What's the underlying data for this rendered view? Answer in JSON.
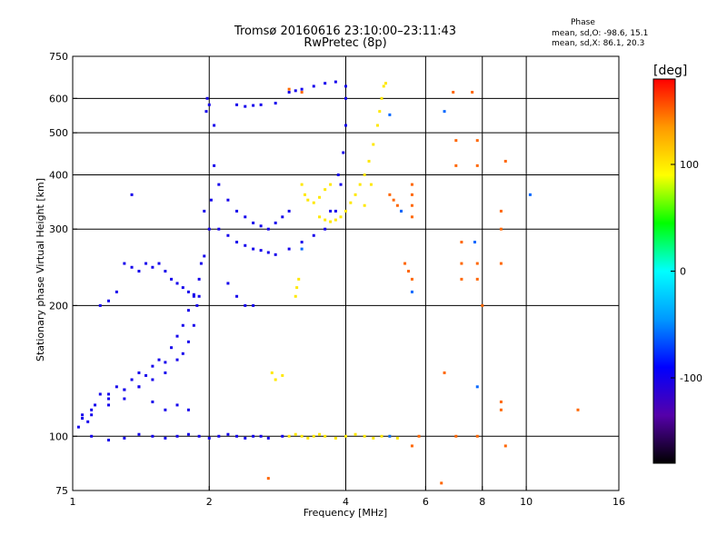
{
  "title_line1": "Tromsø 20160616 23:10:00–23:11:43",
  "title_line2": "RwPretec (8p)",
  "phase_box": {
    "title": "Phase",
    "mean_o": "mean, sd,O: -98.6, 15.1",
    "mean_x": "mean, sd,X: 86.1, 20.3"
  },
  "colorbar": {
    "unit_label": "[deg]",
    "ticks": [
      {
        "value": 100,
        "label": "100"
      },
      {
        "value": 0,
        "label": "0"
      },
      {
        "value": -100,
        "label": "-100"
      }
    ],
    "range": [
      -180,
      180
    ],
    "colors_bottom_to_top": [
      "#000000",
      "#5500aa",
      "#0000ff",
      "#0099ff",
      "#00ffff",
      "#00ff00",
      "#ffff00",
      "#ff9900",
      "#ff0000"
    ]
  },
  "chart_data": {
    "type": "scatter",
    "title": "Tromsø 20160616 23:10:00–23:11:43",
    "subtitle": "RwPretec (8p)",
    "xlabel": "Frequency [MHz]",
    "ylabel": "Stationary phase Virtual Height [km]",
    "x_scale": "log",
    "y_scale": "log",
    "xlim": [
      1,
      16
    ],
    "ylim": [
      75,
      750
    ],
    "x_ticks": [
      {
        "value": 1,
        "label": "1"
      },
      {
        "value": 2,
        "label": "2"
      },
      {
        "value": 4,
        "label": "4"
      },
      {
        "value": 6,
        "label": "6"
      },
      {
        "value": 8,
        "label": "8"
      },
      {
        "value": 10,
        "label": "10"
      },
      {
        "value": 16,
        "label": "16"
      }
    ],
    "x_gridlines": [
      2,
      4,
      6,
      8,
      10
    ],
    "y_ticks": [
      {
        "value": 75,
        "label": "75"
      },
      {
        "value": 100,
        "label": "100"
      },
      {
        "value": 200,
        "label": "200"
      },
      {
        "value": 300,
        "label": "300"
      },
      {
        "value": 400,
        "label": "400"
      },
      {
        "value": 500,
        "label": "500"
      },
      {
        "value": 600,
        "label": "600"
      },
      {
        "value": 750,
        "label": "750"
      }
    ],
    "y_gridlines": [
      100,
      200,
      300,
      400,
      500,
      600
    ],
    "grid": true,
    "color_encoding": "phase [deg]",
    "series": [
      {
        "color_phase": -100,
        "points": [
          [
            1.03,
            105
          ],
          [
            1.05,
            110
          ],
          [
            1.08,
            108
          ],
          [
            1.1,
            112
          ],
          [
            1.12,
            118
          ],
          [
            1.15,
            125
          ],
          [
            1.2,
            122
          ],
          [
            1.25,
            130
          ],
          [
            1.3,
            128
          ],
          [
            1.35,
            135
          ],
          [
            1.4,
            140
          ],
          [
            1.45,
            138
          ],
          [
            1.5,
            145
          ],
          [
            1.55,
            150
          ],
          [
            1.6,
            148
          ],
          [
            1.65,
            160
          ],
          [
            1.7,
            170
          ],
          [
            1.75,
            180
          ],
          [
            1.8,
            195
          ],
          [
            1.85,
            210
          ],
          [
            1.9,
            230
          ],
          [
            1.95,
            260
          ],
          [
            2.0,
            300
          ],
          [
            2.02,
            350
          ],
          [
            2.05,
            420
          ],
          [
            2.05,
            520
          ],
          [
            2.0,
            580
          ],
          [
            1.98,
            600
          ],
          [
            1.97,
            560
          ],
          [
            1.95,
            330
          ],
          [
            1.92,
            250
          ],
          [
            1.88,
            200
          ],
          [
            1.85,
            180
          ],
          [
            1.8,
            165
          ],
          [
            1.75,
            155
          ],
          [
            1.7,
            150
          ],
          [
            1.6,
            140
          ],
          [
            1.5,
            135
          ],
          [
            1.4,
            130
          ],
          [
            1.3,
            122
          ],
          [
            1.2,
            118
          ],
          [
            1.1,
            115
          ],
          [
            1.05,
            112
          ],
          [
            1.3,
            250
          ],
          [
            1.35,
            245
          ],
          [
            1.4,
            240
          ],
          [
            1.45,
            250
          ],
          [
            1.5,
            245
          ],
          [
            1.55,
            250
          ],
          [
            1.6,
            240
          ],
          [
            1.65,
            230
          ],
          [
            1.7,
            225
          ],
          [
            1.75,
            220
          ],
          [
            1.8,
            215
          ],
          [
            1.85,
            212
          ],
          [
            1.9,
            210
          ],
          [
            2.1,
            380
          ],
          [
            2.2,
            350
          ],
          [
            2.3,
            330
          ],
          [
            2.4,
            320
          ],
          [
            2.5,
            310
          ],
          [
            2.6,
            305
          ],
          [
            2.7,
            300
          ],
          [
            2.8,
            310
          ],
          [
            2.9,
            320
          ],
          [
            3.0,
            330
          ],
          [
            2.1,
            300
          ],
          [
            2.2,
            290
          ],
          [
            2.3,
            280
          ],
          [
            2.4,
            275
          ],
          [
            2.5,
            270
          ],
          [
            2.6,
            268
          ],
          [
            2.7,
            265
          ],
          [
            2.8,
            262
          ],
          [
            3.0,
            270
          ],
          [
            3.2,
            280
          ],
          [
            3.4,
            290
          ],
          [
            3.6,
            300
          ],
          [
            3.8,
            330
          ],
          [
            3.9,
            380
          ],
          [
            3.95,
            450
          ],
          [
            4.0,
            520
          ],
          [
            4.0,
            600
          ],
          [
            4.0,
            640
          ],
          [
            3.85,
            400
          ],
          [
            3.7,
            330
          ],
          [
            2.2,
            225
          ],
          [
            2.3,
            210
          ],
          [
            2.4,
            200
          ],
          [
            2.5,
            200
          ],
          [
            2.3,
            580
          ],
          [
            2.4,
            575
          ],
          [
            2.5,
            578
          ],
          [
            2.6,
            580
          ],
          [
            2.8,
            585
          ],
          [
            3.0,
            620
          ],
          [
            3.1,
            625
          ],
          [
            3.2,
            630
          ],
          [
            3.4,
            640
          ],
          [
            3.6,
            650
          ],
          [
            3.8,
            655
          ],
          [
            1.1,
            100
          ],
          [
            1.2,
            98
          ],
          [
            1.3,
            99
          ],
          [
            1.4,
            101
          ],
          [
            1.5,
            100
          ],
          [
            1.6,
            99
          ],
          [
            1.7,
            100
          ],
          [
            1.8,
            101
          ],
          [
            1.9,
            100
          ],
          [
            2.0,
            99
          ],
          [
            2.1,
            100
          ],
          [
            2.2,
            101
          ],
          [
            2.3,
            100
          ],
          [
            2.4,
            99
          ],
          [
            2.5,
            100
          ],
          [
            2.6,
            100
          ],
          [
            2.7,
            99
          ],
          [
            2.9,
            100
          ],
          [
            1.2,
            125
          ],
          [
            1.3,
            128
          ],
          [
            1.4,
            130
          ],
          [
            1.5,
            120
          ],
          [
            1.6,
            115
          ],
          [
            1.7,
            118
          ],
          [
            1.8,
            115
          ],
          [
            1.15,
            200
          ],
          [
            1.2,
            205
          ],
          [
            1.25,
            215
          ],
          [
            1.35,
            360
          ]
        ]
      },
      {
        "color_phase": 100,
        "points": [
          [
            3.2,
            380
          ],
          [
            3.25,
            360
          ],
          [
            3.3,
            350
          ],
          [
            3.4,
            345
          ],
          [
            3.5,
            355
          ],
          [
            3.6,
            370
          ],
          [
            3.7,
            380
          ],
          [
            3.5,
            320
          ],
          [
            3.6,
            315
          ],
          [
            3.7,
            312
          ],
          [
            3.8,
            315
          ],
          [
            3.9,
            320
          ],
          [
            4.0,
            330
          ],
          [
            4.1,
            345
          ],
          [
            4.2,
            360
          ],
          [
            4.3,
            380
          ],
          [
            4.4,
            400
          ],
          [
            4.5,
            430
          ],
          [
            4.6,
            470
          ],
          [
            4.7,
            520
          ],
          [
            4.8,
            600
          ],
          [
            4.85,
            640
          ],
          [
            4.9,
            650
          ],
          [
            4.75,
            560
          ],
          [
            4.55,
            380
          ],
          [
            4.4,
            340
          ],
          [
            3.1,
            210
          ],
          [
            3.12,
            220
          ],
          [
            3.15,
            230
          ],
          [
            3.0,
            100
          ],
          [
            3.1,
            101
          ],
          [
            3.2,
            100
          ],
          [
            3.3,
            99
          ],
          [
            3.4,
            100
          ],
          [
            3.5,
            101
          ],
          [
            3.6,
            100
          ],
          [
            3.8,
            99
          ],
          [
            4.0,
            100
          ],
          [
            4.2,
            101
          ],
          [
            4.4,
            100
          ],
          [
            4.6,
            99
          ],
          [
            4.8,
            100
          ],
          [
            5.0,
            100
          ],
          [
            5.2,
            99
          ],
          [
            2.75,
            140
          ],
          [
            2.8,
            135
          ],
          [
            2.9,
            138
          ]
        ]
      },
      {
        "color_phase": 150,
        "points": [
          [
            3.0,
            630
          ],
          [
            3.2,
            620
          ],
          [
            5.0,
            360
          ],
          [
            5.1,
            350
          ],
          [
            5.2,
            340
          ],
          [
            5.3,
            330
          ],
          [
            5.6,
            380
          ],
          [
            5.6,
            360
          ],
          [
            5.6,
            340
          ],
          [
            5.6,
            320
          ],
          [
            5.4,
            250
          ],
          [
            5.5,
            240
          ],
          [
            5.6,
            230
          ],
          [
            6.9,
            620
          ],
          [
            7.0,
            480
          ],
          [
            7.0,
            420
          ],
          [
            7.2,
            280
          ],
          [
            7.2,
            250
          ],
          [
            7.2,
            230
          ],
          [
            7.6,
            620
          ],
          [
            7.8,
            480
          ],
          [
            7.8,
            420
          ],
          [
            7.8,
            250
          ],
          [
            7.8,
            230
          ],
          [
            8.0,
            200
          ],
          [
            8.8,
            330
          ],
          [
            8.8,
            300
          ],
          [
            8.8,
            250
          ],
          [
            8.8,
            120
          ],
          [
            8.8,
            115
          ],
          [
            9.0,
            430
          ],
          [
            9.0,
            95
          ],
          [
            6.6,
            140
          ],
          [
            7.0,
            100
          ],
          [
            7.8,
            100
          ],
          [
            5.8,
            100
          ],
          [
            5.6,
            95
          ],
          [
            6.5,
            78
          ],
          [
            13.0,
            115
          ],
          [
            2.7,
            80
          ]
        ]
      },
      {
        "color_phase": -60,
        "points": [
          [
            5.0,
            550
          ],
          [
            5.3,
            330
          ],
          [
            5.6,
            215
          ],
          [
            6.6,
            560
          ],
          [
            7.7,
            280
          ],
          [
            7.8,
            130
          ],
          [
            10.2,
            360
          ],
          [
            5.0,
            100
          ],
          [
            3.2,
            270
          ]
        ]
      }
    ]
  }
}
